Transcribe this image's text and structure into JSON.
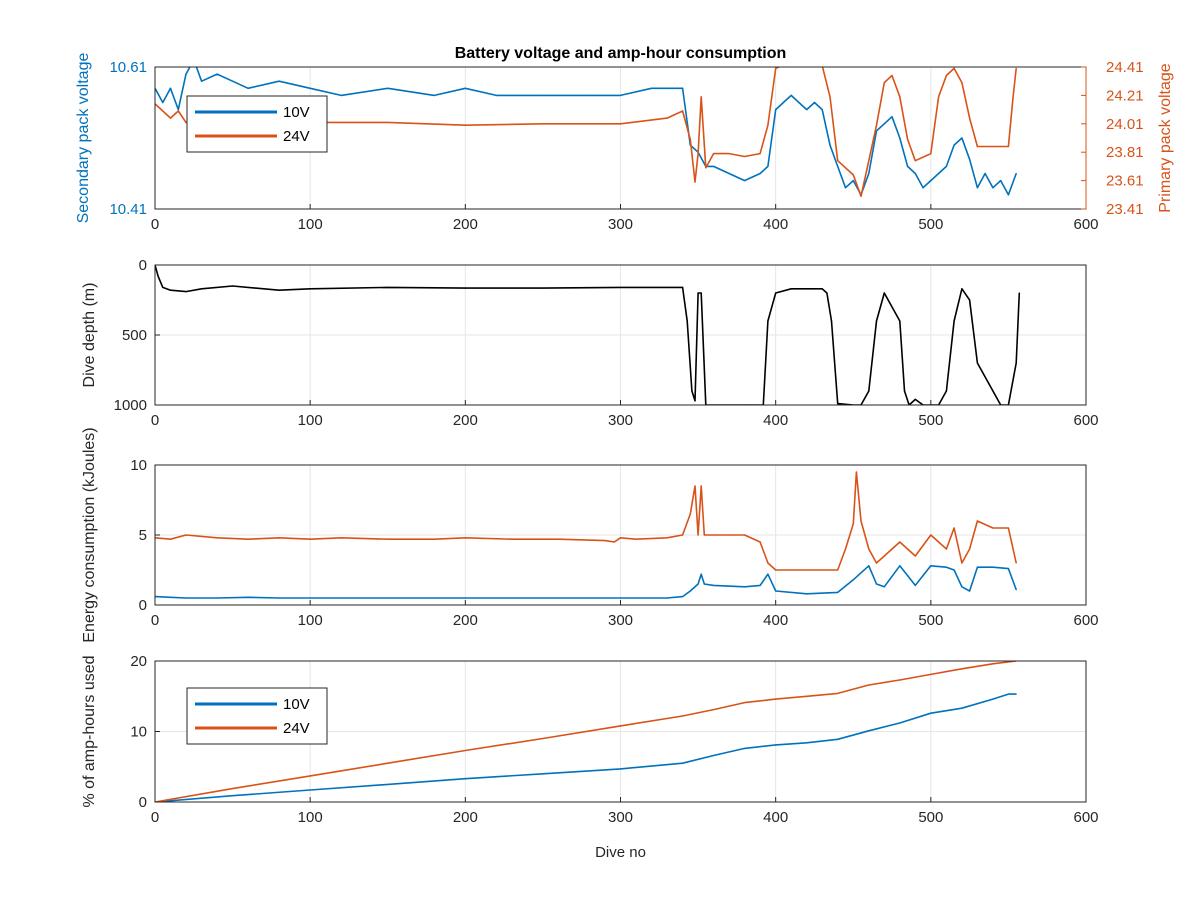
{
  "figure": {
    "title": "Battery voltage and amp-hour consumption",
    "xlabel": "Dive no"
  },
  "colors": {
    "blue": "#0072BD",
    "orange": "#D95319",
    "black": "#000000",
    "grid": "#e6e6e6",
    "axis": "#262626"
  },
  "chart_data": [
    {
      "type": "line",
      "title": "Battery voltage and amp-hour consumption",
      "xlabel": "",
      "ylabel_left": "Secondary pack voltage",
      "ylabel_right": "Primary pack voltage",
      "xlim": [
        0,
        600
      ],
      "ylim_left": [
        10.41,
        10.61
      ],
      "ylim_right": [
        23.41,
        24.41
      ],
      "xticks": [
        "0",
        "100",
        "200",
        "300",
        "400",
        "500",
        "600"
      ],
      "yticks_left": [
        "10.41",
        "10.61"
      ],
      "yticks_right": [
        "23.41",
        "23.61",
        "23.81",
        "24.01",
        "24.21",
        "24.41"
      ],
      "grid": true,
      "legend": {
        "position": "top-left",
        "entries": [
          "10V",
          "24V"
        ]
      },
      "series": [
        {
          "name": "10V",
          "axis": "left",
          "x": [
            0,
            5,
            10,
            15,
            20,
            25,
            30,
            40,
            50,
            60,
            80,
            100,
            120,
            150,
            180,
            200,
            220,
            250,
            280,
            300,
            320,
            340,
            345,
            350,
            355,
            360,
            370,
            380,
            390,
            395,
            400,
            405,
            410,
            415,
            420,
            425,
            430,
            435,
            440,
            445,
            450,
            455,
            460,
            465,
            470,
            475,
            480,
            485,
            490,
            495,
            500,
            505,
            510,
            515,
            520,
            525,
            530,
            535,
            540,
            545,
            550,
            555
          ],
          "y": [
            10.58,
            10.56,
            10.58,
            10.55,
            10.6,
            10.62,
            10.59,
            10.6,
            10.59,
            10.58,
            10.59,
            10.58,
            10.57,
            10.58,
            10.57,
            10.58,
            10.57,
            10.57,
            10.57,
            10.57,
            10.58,
            10.58,
            10.5,
            10.49,
            10.47,
            10.47,
            10.46,
            10.45,
            10.46,
            10.47,
            10.55,
            10.56,
            10.57,
            10.56,
            10.55,
            10.56,
            10.55,
            10.5,
            10.47,
            10.44,
            10.45,
            10.43,
            10.46,
            10.52,
            10.53,
            10.54,
            10.51,
            10.47,
            10.46,
            10.44,
            10.45,
            10.46,
            10.47,
            10.5,
            10.51,
            10.48,
            10.44,
            10.46,
            10.44,
            10.45,
            10.43,
            10.46
          ]
        },
        {
          "name": "24V",
          "axis": "right",
          "x": [
            0,
            5,
            10,
            15,
            20,
            30,
            50,
            80,
            100,
            150,
            200,
            250,
            300,
            330,
            340,
            345,
            348,
            350,
            352,
            355,
            360,
            370,
            380,
            390,
            395,
            400,
            410,
            420,
            430,
            435,
            440,
            450,
            455,
            460,
            465,
            470,
            475,
            480,
            485,
            490,
            500,
            505,
            510,
            515,
            520,
            525,
            530,
            540,
            550,
            553,
            555
          ],
          "y": [
            24.15,
            24.1,
            24.05,
            24.1,
            24.02,
            24.02,
            24.05,
            24.02,
            24.02,
            24.02,
            24.0,
            24.01,
            24.01,
            24.05,
            24.1,
            23.9,
            23.6,
            23.8,
            24.2,
            23.7,
            23.8,
            23.8,
            23.78,
            23.8,
            24.0,
            24.4,
            24.45,
            24.45,
            24.42,
            24.2,
            23.75,
            23.65,
            23.5,
            23.75,
            24.0,
            24.3,
            24.35,
            24.2,
            23.9,
            23.75,
            23.8,
            24.2,
            24.35,
            24.4,
            24.3,
            24.05,
            23.85,
            23.85,
            23.85,
            24.2,
            24.4
          ]
        }
      ]
    },
    {
      "type": "line",
      "xlabel": "",
      "ylabel": "Dive depth (m)",
      "xlim": [
        0,
        600
      ],
      "ylim": [
        0,
        1000
      ],
      "y_reversed": true,
      "xticks": [
        "0",
        "100",
        "200",
        "300",
        "400",
        "500",
        "600"
      ],
      "yticks": [
        "0",
        "500",
        "1000"
      ],
      "grid": true,
      "series": [
        {
          "x": [
            0,
            2,
            5,
            10,
            20,
            30,
            50,
            80,
            100,
            150,
            200,
            250,
            300,
            340,
            343,
            346,
            348,
            350,
            352,
            355,
            358,
            380,
            392,
            395,
            400,
            410,
            430,
            433,
            436,
            440,
            450,
            455,
            460,
            465,
            470,
            480,
            483,
            486,
            490,
            495,
            505,
            510,
            515,
            520,
            525,
            530,
            545,
            550,
            555,
            557
          ],
          "y": [
            0,
            80,
            160,
            180,
            190,
            170,
            150,
            180,
            170,
            160,
            165,
            165,
            160,
            160,
            400,
            900,
            970,
            200,
            200,
            1000,
            1000,
            1000,
            1000,
            400,
            200,
            170,
            170,
            200,
            400,
            990,
            1000,
            1000,
            900,
            400,
            200,
            400,
            900,
            1000,
            960,
            1000,
            1000,
            900,
            400,
            170,
            250,
            700,
            1000,
            1000,
            700,
            200
          ]
        }
      ]
    },
    {
      "type": "line",
      "xlabel": "",
      "ylabel": "Energy consumption (kJoules)",
      "xlim": [
        0,
        600
      ],
      "ylim": [
        0,
        10
      ],
      "xticks": [
        "0",
        "100",
        "200",
        "300",
        "400",
        "500",
        "600"
      ],
      "yticks": [
        "0",
        "5",
        "10"
      ],
      "grid": true,
      "series": [
        {
          "name": "24V",
          "x": [
            0,
            10,
            20,
            40,
            60,
            80,
            100,
            120,
            150,
            180,
            200,
            230,
            260,
            290,
            296,
            300,
            310,
            330,
            340,
            345,
            348,
            350,
            352,
            354,
            360,
            370,
            380,
            390,
            395,
            400,
            420,
            440,
            445,
            450,
            452,
            455,
            460,
            465,
            470,
            480,
            490,
            500,
            510,
            515,
            520,
            525,
            530,
            540,
            550,
            555
          ],
          "y": [
            4.8,
            4.7,
            5.0,
            4.8,
            4.7,
            4.8,
            4.7,
            4.8,
            4.7,
            4.7,
            4.8,
            4.7,
            4.7,
            4.6,
            4.5,
            4.8,
            4.7,
            4.8,
            5.0,
            6.5,
            8.5,
            5.0,
            8.5,
            5.0,
            5.0,
            5.0,
            5.0,
            4.5,
            3.0,
            2.5,
            2.5,
            2.5,
            4.0,
            5.8,
            9.5,
            6.0,
            4.0,
            3.0,
            3.5,
            4.5,
            3.5,
            5.0,
            4.0,
            5.5,
            3.0,
            4.0,
            6.0,
            5.5,
            5.5,
            3.0
          ]
        },
        {
          "name": "10V",
          "x": [
            0,
            10,
            20,
            40,
            60,
            80,
            100,
            150,
            200,
            250,
            296,
            300,
            330,
            340,
            345,
            350,
            352,
            354,
            360,
            380,
            390,
            395,
            400,
            420,
            440,
            450,
            455,
            460,
            465,
            470,
            480,
            490,
            500,
            510,
            515,
            520,
            525,
            530,
            540,
            550,
            555
          ],
          "y": [
            0.6,
            0.55,
            0.5,
            0.5,
            0.55,
            0.5,
            0.5,
            0.5,
            0.5,
            0.5,
            0.5,
            0.5,
            0.5,
            0.6,
            1.0,
            1.5,
            2.2,
            1.5,
            1.4,
            1.3,
            1.4,
            2.2,
            1.0,
            0.8,
            0.9,
            1.8,
            2.3,
            2.8,
            1.5,
            1.3,
            2.8,
            1.4,
            2.8,
            2.7,
            2.5,
            1.3,
            1.0,
            2.7,
            2.7,
            2.6,
            1.1
          ]
        }
      ]
    },
    {
      "type": "line",
      "xlabel": "Dive no",
      "ylabel": "% of amp-hours used",
      "xlim": [
        0,
        600
      ],
      "ylim": [
        0,
        20
      ],
      "xticks": [
        "0",
        "100",
        "200",
        "300",
        "400",
        "500",
        "600"
      ],
      "yticks": [
        "0",
        "10",
        "20"
      ],
      "grid": true,
      "legend": {
        "position": "top-left",
        "entries": [
          "10V",
          "24V"
        ]
      },
      "series": [
        {
          "name": "10V",
          "x": [
            0,
            50,
            100,
            150,
            200,
            250,
            300,
            340,
            360,
            380,
            400,
            420,
            440,
            460,
            480,
            500,
            520,
            540,
            550,
            555
          ],
          "y": [
            0,
            0.9,
            1.7,
            2.5,
            3.3,
            4.0,
            4.7,
            5.5,
            6.6,
            7.6,
            8.1,
            8.4,
            8.9,
            10.1,
            11.2,
            12.6,
            13.3,
            14.6,
            15.3,
            15.3
          ]
        },
        {
          "name": "24V",
          "x": [
            0,
            50,
            100,
            150,
            200,
            250,
            300,
            340,
            360,
            380,
            400,
            420,
            440,
            460,
            480,
            500,
            520,
            540,
            555
          ],
          "y": [
            0,
            1.9,
            3.7,
            5.5,
            7.3,
            9.0,
            10.8,
            12.2,
            13.1,
            14.1,
            14.6,
            15.0,
            15.4,
            16.6,
            17.3,
            18.1,
            18.9,
            19.6,
            20.0
          ]
        }
      ]
    }
  ]
}
